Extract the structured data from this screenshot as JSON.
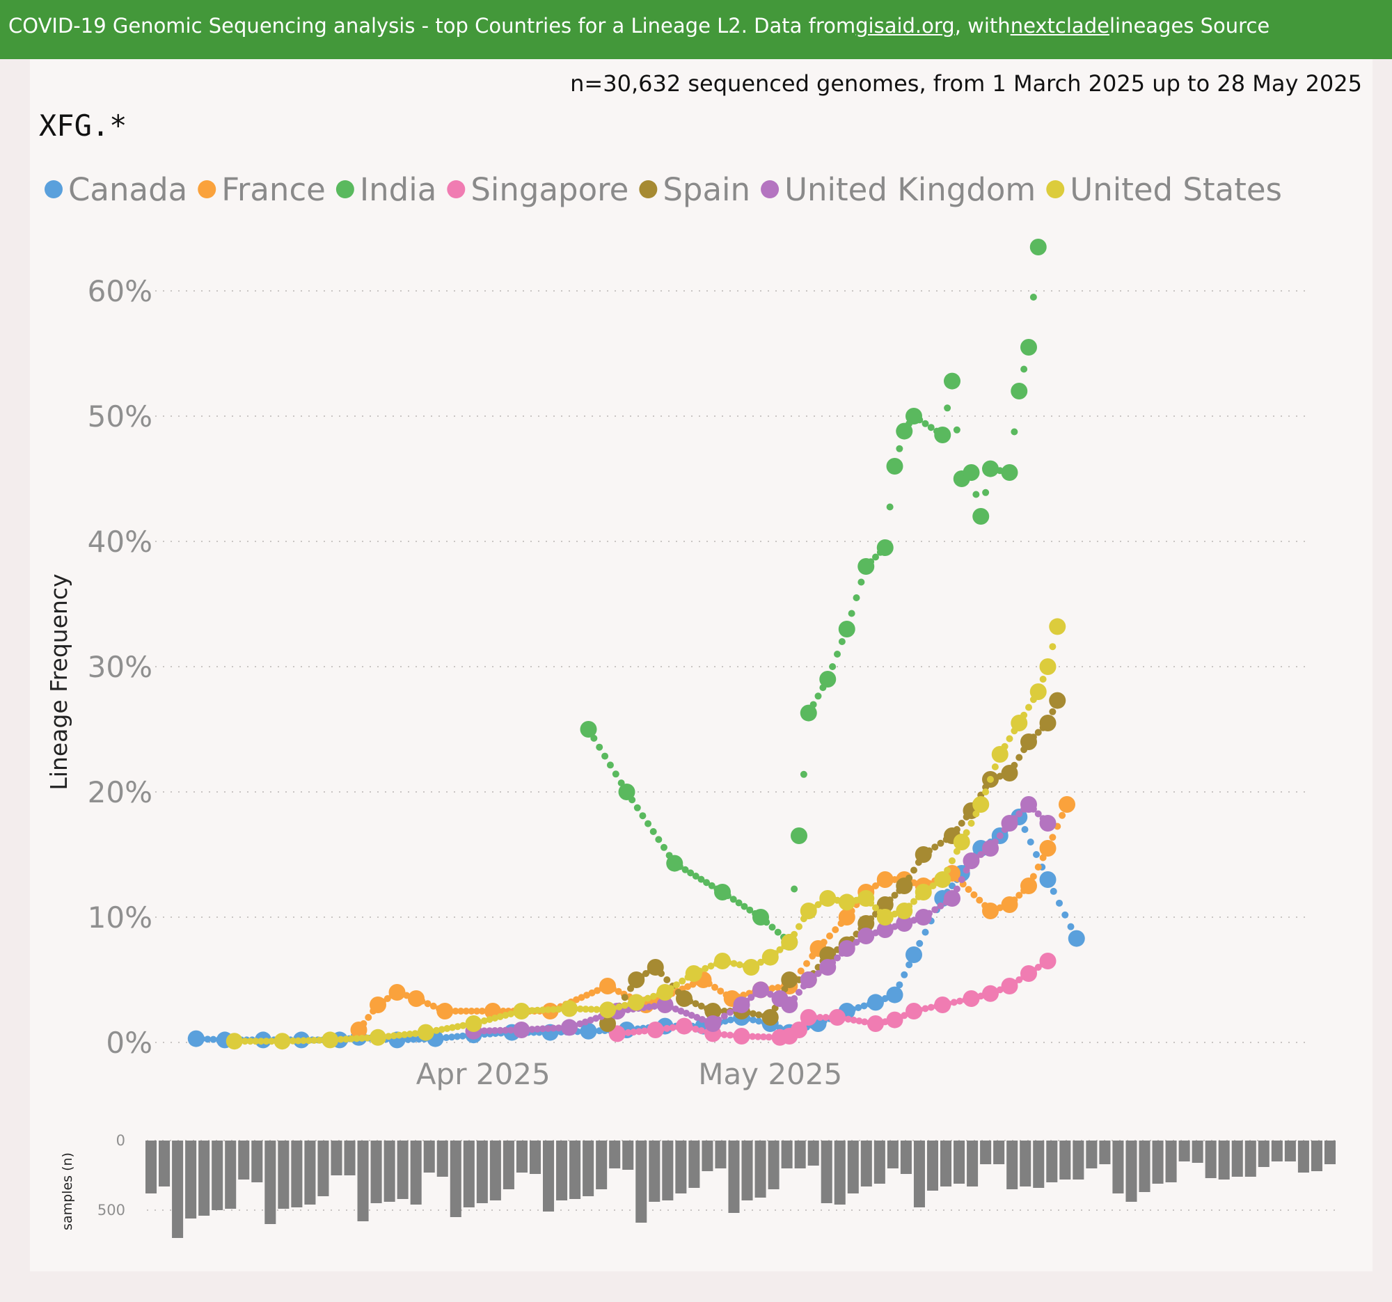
{
  "header": {
    "title_part1": "COVID-19 Genomic Sequencing analysis - top Countries for a Lineage L2. Data from ",
    "link_gisaid": "gisaid.org",
    "title_part2": ", with ",
    "link_nextclade": "nextclade",
    "title_part3": " lineages Source"
  },
  "subtitle": "n=30,632 sequenced genomes, from 1 March 2025 up to 28 May 2025",
  "lineage_title": "XFG.*",
  "colors": {
    "Canada": "#5aa0dc",
    "France": "#faa23c",
    "India": "#5ab95e",
    "Singapore": "#f07cb2",
    "Spain": "#a68a32",
    "United Kingdom": "#b474c0",
    "United States": "#dccc3c",
    "banner": "#43983a",
    "bar": "#808080"
  },
  "chart_data": [
    {
      "type": "scatter",
      "title": "XFG.*",
      "ylabel": "Lineage Frequency",
      "xlabel": "",
      "x_ticks": [
        "Apr 2025",
        "May 2025"
      ],
      "y_ticks": [
        "0%",
        "10%",
        "20%",
        "30%",
        "40%",
        "50%",
        "60%"
      ],
      "ylim": [
        0,
        65
      ],
      "grid": true,
      "legend_position": "top-left",
      "legend": [
        "Canada",
        "France",
        "India",
        "Singapore",
        "Spain",
        "United Kingdom",
        "United States"
      ],
      "x_unit": "days since 1 March 2025 (day 31 = 1 Apr, day 61 = 1 May)",
      "series": [
        {
          "name": "Canada",
          "points": [
            [
              1,
              0.3
            ],
            [
              4,
              0.2
            ],
            [
              8,
              0.2
            ],
            [
              12,
              0.2
            ],
            [
              16,
              0.2
            ],
            [
              18,
              0.4
            ],
            [
              22,
              0.2
            ],
            [
              26,
              0.3
            ],
            [
              30,
              0.6
            ],
            [
              34,
              0.8
            ],
            [
              38,
              0.8
            ],
            [
              42,
              0.9
            ],
            [
              46,
              1.0
            ],
            [
              50,
              1.3
            ],
            [
              54,
              1.3
            ],
            [
              58,
              2.0
            ],
            [
              61,
              1.5
            ],
            [
              63,
              0.8
            ],
            [
              66,
              1.5
            ],
            [
              69,
              2.5
            ],
            [
              72,
              3.2
            ],
            [
              74,
              3.8
            ],
            [
              76,
              7.0
            ],
            [
              79,
              11.5
            ],
            [
              81,
              13.5
            ],
            [
              83,
              15.5
            ],
            [
              85,
              16.5
            ],
            [
              87,
              18.0
            ],
            [
              90,
              13.0
            ],
            [
              93,
              8.3
            ]
          ]
        },
        {
          "name": "France",
          "points": [
            [
              18,
              1.0
            ],
            [
              20,
              3.0
            ],
            [
              22,
              4.0
            ],
            [
              24,
              3.5
            ],
            [
              27,
              2.5
            ],
            [
              32,
              2.5
            ],
            [
              38,
              2.5
            ],
            [
              44,
              4.5
            ],
            [
              48,
              3.0
            ],
            [
              54,
              5.0
            ],
            [
              57,
              3.5
            ],
            [
              60,
              4.2
            ],
            [
              63,
              4.5
            ],
            [
              66,
              7.5
            ],
            [
              69,
              10.0
            ],
            [
              71,
              12.0
            ],
            [
              73,
              13.0
            ],
            [
              75,
              13.0
            ],
            [
              77,
              12.5
            ],
            [
              80,
              13.5
            ],
            [
              84,
              10.5
            ],
            [
              86,
              11.0
            ],
            [
              88,
              12.5
            ],
            [
              90,
              15.5
            ],
            [
              92,
              19.0
            ]
          ]
        },
        {
          "name": "India",
          "points": [
            [
              42,
              25.0
            ],
            [
              46,
              20.0
            ],
            [
              51,
              14.3
            ],
            [
              56,
              12.0
            ],
            [
              60,
              10.0
            ],
            [
              63,
              8.0
            ],
            [
              64,
              16.5
            ],
            [
              65,
              26.3
            ],
            [
              67,
              29.0
            ],
            [
              69,
              33.0
            ],
            [
              71,
              38.0
            ],
            [
              73,
              39.5
            ],
            [
              74,
              46.0
            ],
            [
              75,
              48.8
            ],
            [
              76,
              50.0
            ],
            [
              79,
              48.5
            ],
            [
              80,
              52.8
            ],
            [
              81,
              45.0
            ],
            [
              82,
              45.5
            ],
            [
              83,
              42.0
            ],
            [
              84,
              45.8
            ],
            [
              86,
              45.5
            ],
            [
              87,
              52.0
            ],
            [
              88,
              55.5
            ],
            [
              89,
              63.5
            ]
          ]
        },
        {
          "name": "Singapore",
          "points": [
            [
              45,
              0.7
            ],
            [
              49,
              1.0
            ],
            [
              52,
              1.3
            ],
            [
              55,
              0.7
            ],
            [
              58,
              0.5
            ],
            [
              62,
              0.4
            ],
            [
              63,
              0.5
            ],
            [
              64,
              1.0
            ],
            [
              65,
              2.0
            ],
            [
              68,
              2.0
            ],
            [
              72,
              1.5
            ],
            [
              74,
              1.8
            ],
            [
              76,
              2.5
            ],
            [
              79,
              3.0
            ],
            [
              82,
              3.5
            ],
            [
              84,
              3.9
            ],
            [
              86,
              4.5
            ],
            [
              88,
              5.5
            ],
            [
              90,
              6.5
            ]
          ]
        },
        {
          "name": "Spain",
          "points": [
            [
              44,
              1.5
            ],
            [
              47,
              5.0
            ],
            [
              49,
              6.0
            ],
            [
              52,
              3.5
            ],
            [
              55,
              2.5
            ],
            [
              58,
              2.5
            ],
            [
              61,
              2.0
            ],
            [
              63,
              5.0
            ],
            [
              65,
              5.0
            ],
            [
              67,
              7.0
            ],
            [
              69,
              7.8
            ],
            [
              71,
              9.5
            ],
            [
              73,
              11.0
            ],
            [
              75,
              12.5
            ],
            [
              77,
              15.0
            ],
            [
              80,
              16.5
            ],
            [
              82,
              18.5
            ],
            [
              84,
              21.0
            ],
            [
              86,
              21.5
            ],
            [
              88,
              24.0
            ],
            [
              90,
              25.5
            ],
            [
              91,
              27.3
            ]
          ]
        },
        {
          "name": "United Kingdom",
          "points": [
            [
              30,
              0.9
            ],
            [
              35,
              1.0
            ],
            [
              40,
              1.2
            ],
            [
              45,
              2.5
            ],
            [
              50,
              3.0
            ],
            [
              55,
              1.5
            ],
            [
              58,
              3.0
            ],
            [
              60,
              4.2
            ],
            [
              62,
              3.5
            ],
            [
              63,
              3.0
            ],
            [
              65,
              5.0
            ],
            [
              67,
              6.0
            ],
            [
              69,
              7.5
            ],
            [
              71,
              8.5
            ],
            [
              73,
              9.0
            ],
            [
              75,
              9.5
            ],
            [
              77,
              10.0
            ],
            [
              80,
              11.5
            ],
            [
              82,
              14.5
            ],
            [
              84,
              15.5
            ],
            [
              86,
              17.5
            ],
            [
              88,
              19.0
            ],
            [
              90,
              17.5
            ]
          ]
        },
        {
          "name": "United States",
          "points": [
            [
              5,
              0.1
            ],
            [
              10,
              0.1
            ],
            [
              15,
              0.2
            ],
            [
              20,
              0.4
            ],
            [
              25,
              0.8
            ],
            [
              30,
              1.5
            ],
            [
              35,
              2.5
            ],
            [
              40,
              2.7
            ],
            [
              44,
              2.6
            ],
            [
              47,
              3.2
            ],
            [
              50,
              4.0
            ],
            [
              53,
              5.5
            ],
            [
              56,
              6.5
            ],
            [
              59,
              6.0
            ],
            [
              61,
              6.8
            ],
            [
              63,
              8.0
            ],
            [
              65,
              10.5
            ],
            [
              67,
              11.5
            ],
            [
              69,
              11.2
            ],
            [
              71,
              11.5
            ],
            [
              73,
              10.0
            ],
            [
              75,
              10.5
            ],
            [
              77,
              12.0
            ],
            [
              79,
              13.0
            ],
            [
              81,
              16.0
            ],
            [
              83,
              19.0
            ],
            [
              85,
              23.0
            ],
            [
              87,
              25.5
            ],
            [
              89,
              28.0
            ],
            [
              90,
              30.0
            ],
            [
              91,
              33.2
            ]
          ]
        }
      ]
    },
    {
      "type": "bar",
      "title": "samples (n)",
      "ylabel": "samples (n)",
      "y_ticks": [
        "0",
        "500"
      ],
      "ylim": [
        0,
        750
      ],
      "orientation": "downward",
      "values": [
        380,
        330,
        700,
        560,
        540,
        500,
        490,
        280,
        300,
        600,
        490,
        480,
        460,
        400,
        250,
        250,
        580,
        450,
        440,
        420,
        460,
        230,
        260,
        550,
        480,
        450,
        430,
        350,
        230,
        240,
        510,
        430,
        420,
        400,
        350,
        200,
        210,
        590,
        440,
        430,
        380,
        340,
        220,
        200,
        520,
        430,
        410,
        350,
        200,
        200,
        180,
        450,
        460,
        380,
        330,
        310,
        200,
        240,
        480,
        360,
        330,
        310,
        330,
        170,
        170,
        350,
        330,
        340,
        300,
        280,
        280,
        200,
        170,
        380,
        440,
        370,
        310,
        300,
        150,
        160,
        270,
        280,
        260,
        260,
        190,
        150,
        150,
        230,
        220,
        170
      ]
    }
  ]
}
